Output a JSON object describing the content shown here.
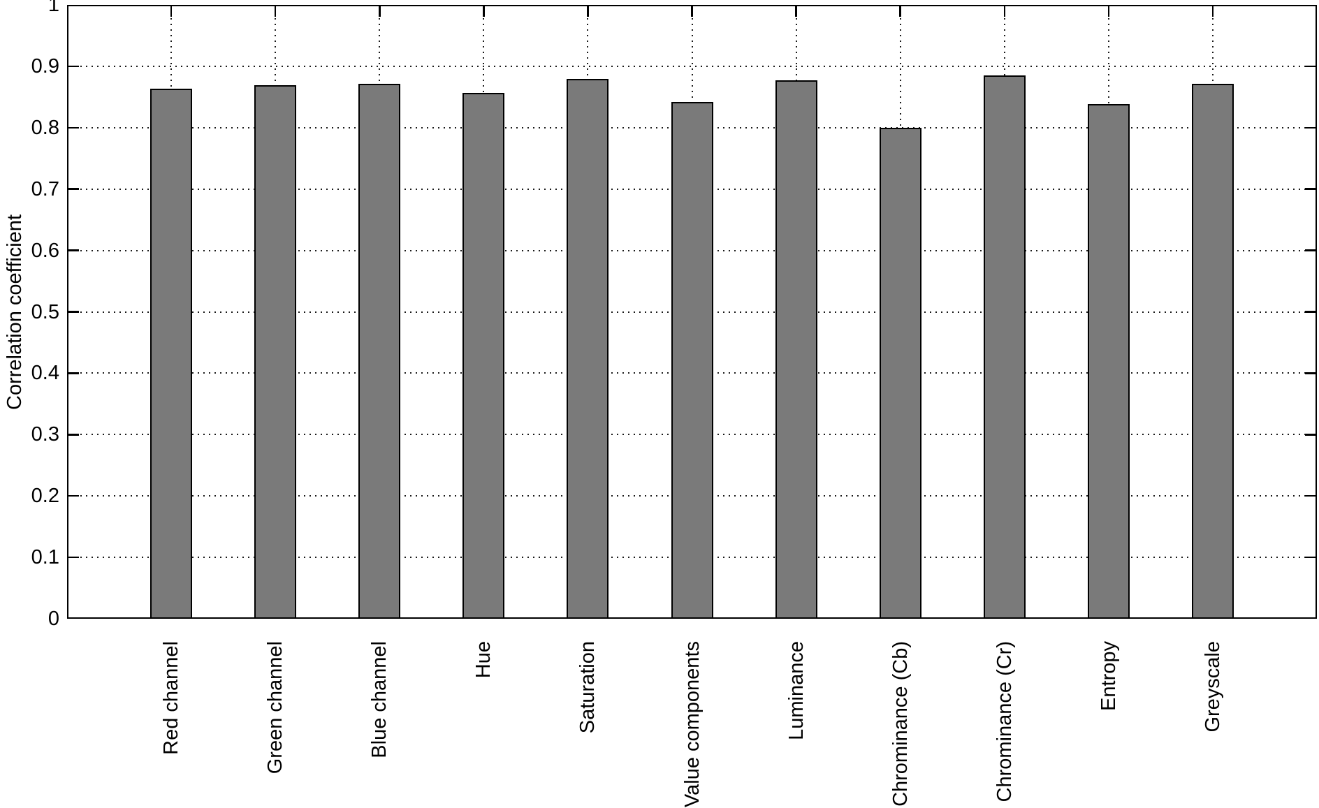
{
  "chart_data": {
    "type": "bar",
    "title": "",
    "categories": [
      "Red channel",
      "Green channel",
      "Blue channel",
      "Hue",
      "Saturation",
      "Value components",
      "Luminance",
      "Chrominance (Cb)",
      "Chrominance (Cr)",
      "Entropy",
      "Greyscale"
    ],
    "values": [
      0.864,
      0.869,
      0.871,
      0.857,
      0.879,
      0.842,
      0.877,
      0.8,
      0.885,
      0.839,
      0.871
    ],
    "xlabel": "",
    "ylabel": "Correlation coefficient",
    "ylim": [
      0,
      1
    ],
    "yticks": [
      0,
      0.1,
      0.2,
      0.3,
      0.4,
      0.5,
      0.6,
      0.7,
      0.8,
      0.9,
      1
    ],
    "ytick_labels": [
      "0",
      "0.1",
      "0.2",
      "0.3",
      "0.4",
      "0.5",
      "0.6",
      "0.7",
      "0.8",
      "0.9",
      "1"
    ],
    "grid": "dotted horizontal lines at each y tick and dotted vertical lines at each bar center",
    "legend": "none",
    "bar_color": "#7a7a7a",
    "bar_edge_color": "#000000",
    "axis_color": "#000000",
    "background_color": "#ffffff",
    "bar_width_fraction": 0.4,
    "xticklabel_rotation_deg": 90
  }
}
